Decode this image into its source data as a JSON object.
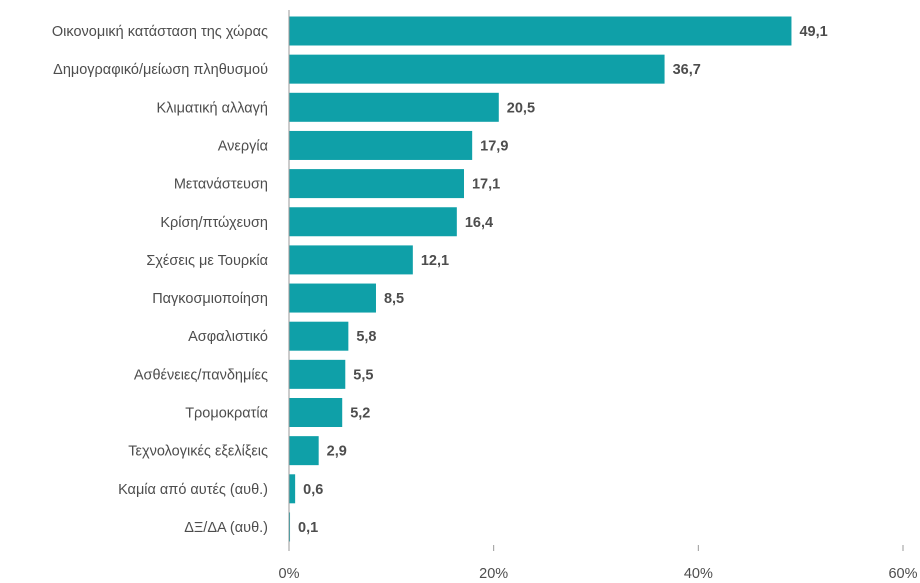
{
  "chart_data": {
    "type": "bar",
    "orientation": "horizontal",
    "title": "",
    "xlabel": "",
    "ylabel": "",
    "categories": [
      "Οικονομική κατάσταση της χώρας",
      "Δημογραφικό/μείωση πληθυσμού",
      "Κλιματική αλλαγή",
      "Ανεργία",
      "Μετανάστευση",
      "Κρίση/πτώχευση",
      "Σχέσεις με Τουρκία",
      "Παγκοσμιοποίηση",
      "Ασφαλιστικό",
      "Ασθένειες/πανδημίες",
      "Τρομοκρατία",
      "Τεχνολογικές εξελίξεις",
      "Καμία από αυτές (αυθ.)",
      "ΔΞ/ΔΑ (αυθ.)"
    ],
    "values": [
      49.1,
      36.7,
      20.5,
      17.9,
      17.1,
      16.4,
      12.1,
      8.5,
      5.8,
      5.5,
      5.2,
      2.9,
      0.6,
      0.1
    ],
    "value_labels": [
      "49,1",
      "36,7",
      "20,5",
      "17,9",
      "17,1",
      "16,4",
      "12,1",
      "8,5",
      "5,8",
      "5,5",
      "5,2",
      "2,9",
      "0,6",
      "0,1"
    ],
    "xlim": [
      0,
      60
    ],
    "x_ticks": [
      0,
      20,
      40,
      60
    ],
    "x_tick_labels": [
      "0%",
      "20%",
      "40%",
      "60%"
    ],
    "grid": false,
    "bar_color": "#0fa0a8"
  }
}
